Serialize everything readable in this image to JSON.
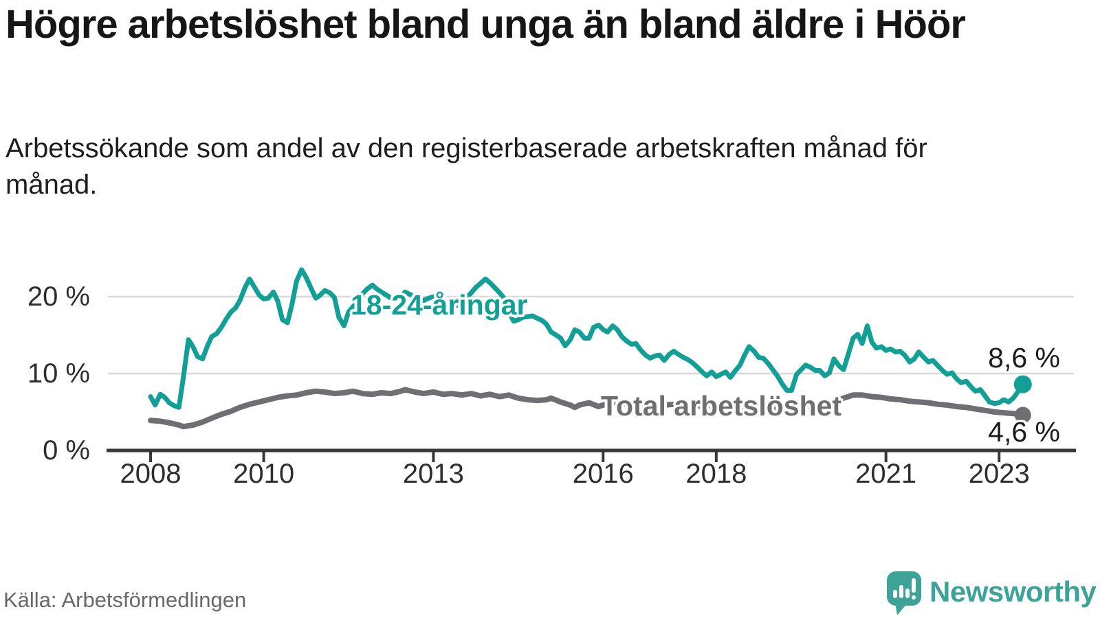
{
  "header": {
    "title": "Högre arbetslöshet bland unga än bland äldre i Höör",
    "subtitle": "Arbetssökande som andel av den registerbaserade arbetskraften månad för månad."
  },
  "chart_data": {
    "type": "line",
    "unit": "%",
    "grid": true,
    "xlim": [
      2007.222,
      2024.322
    ],
    "ylim": [
      0,
      24.46
    ],
    "x_ticks": [
      2008,
      2010,
      2013,
      2016,
      2018,
      2021,
      2023
    ],
    "x_tick_labels": [
      "2008",
      "2010",
      "2013",
      "2016",
      "2018",
      "2021",
      "2023"
    ],
    "y_ticks": [
      0,
      10,
      20
    ],
    "y_tick_labels": [
      "0 %",
      "10 %",
      "20 %"
    ],
    "colors": {
      "youth": "#12A096",
      "total": "#6E6E73",
      "axis": "#38383c",
      "gridline": "#d9d9db",
      "brand": "#3DA398"
    },
    "series": [
      {
        "name": "18-24-åringar",
        "color": "#12A096",
        "end_label": "8,6 %",
        "end_value": 8.6,
        "points": [
          [
            2008.0,
            7.0
          ],
          [
            2008.08,
            5.9
          ],
          [
            2008.17,
            7.3
          ],
          [
            2008.25,
            6.9
          ],
          [
            2008.33,
            6.2
          ],
          [
            2008.42,
            5.8
          ],
          [
            2008.5,
            5.6
          ],
          [
            2008.58,
            9.5
          ],
          [
            2008.67,
            14.4
          ],
          [
            2008.75,
            13.5
          ],
          [
            2008.83,
            12.2
          ],
          [
            2008.92,
            11.9
          ],
          [
            2009.0,
            13.5
          ],
          [
            2009.08,
            14.8
          ],
          [
            2009.17,
            15.2
          ],
          [
            2009.25,
            16.0
          ],
          [
            2009.33,
            17.0
          ],
          [
            2009.42,
            18.0
          ],
          [
            2009.5,
            18.5
          ],
          [
            2009.58,
            19.5
          ],
          [
            2009.67,
            21.2
          ],
          [
            2009.75,
            22.3
          ],
          [
            2009.83,
            21.3
          ],
          [
            2009.92,
            20.2
          ],
          [
            2010.0,
            19.7
          ],
          [
            2010.08,
            19.8
          ],
          [
            2010.17,
            20.6
          ],
          [
            2010.25,
            19.4
          ],
          [
            2010.33,
            17.0
          ],
          [
            2010.42,
            16.6
          ],
          [
            2010.5,
            19.0
          ],
          [
            2010.58,
            22.0
          ],
          [
            2010.67,
            23.5
          ],
          [
            2010.75,
            22.5
          ],
          [
            2010.83,
            21.2
          ],
          [
            2010.92,
            19.8
          ],
          [
            2011.0,
            20.2
          ],
          [
            2011.08,
            20.8
          ],
          [
            2011.17,
            20.5
          ],
          [
            2011.25,
            19.9
          ],
          [
            2011.33,
            17.3
          ],
          [
            2011.42,
            16.2
          ],
          [
            2011.5,
            18.0
          ],
          [
            2011.58,
            18.7
          ],
          [
            2011.67,
            19.6
          ],
          [
            2011.75,
            20.4
          ],
          [
            2011.83,
            21.0
          ],
          [
            2011.92,
            21.5
          ],
          [
            2012.0,
            21.0
          ],
          [
            2012.08,
            20.6
          ],
          [
            2012.17,
            20.2
          ],
          [
            2012.25,
            19.8
          ],
          [
            2012.33,
            19.6
          ],
          [
            2012.42,
            20.0
          ],
          [
            2012.5,
            20.6
          ],
          [
            2012.58,
            20.3
          ],
          [
            2012.67,
            20.0
          ],
          [
            2012.75,
            19.7
          ],
          [
            2012.83,
            19.5
          ],
          [
            2012.92,
            19.8
          ],
          [
            2013.0,
            20.0
          ],
          [
            2013.08,
            19.7
          ],
          [
            2013.17,
            19.4
          ],
          [
            2013.25,
            19.0
          ],
          [
            2013.33,
            18.6
          ],
          [
            2013.42,
            18.9
          ],
          [
            2013.5,
            19.2
          ],
          [
            2013.58,
            19.8
          ],
          [
            2013.67,
            20.5
          ],
          [
            2013.75,
            21.2
          ],
          [
            2013.83,
            21.7
          ],
          [
            2013.92,
            22.3
          ],
          [
            2014.0,
            21.8
          ],
          [
            2014.08,
            21.2
          ],
          [
            2014.17,
            20.5
          ],
          [
            2014.25,
            19.8
          ],
          [
            2014.33,
            18.0
          ],
          [
            2014.42,
            16.8
          ],
          [
            2014.5,
            17.0
          ],
          [
            2014.58,
            17.3
          ],
          [
            2014.67,
            17.4
          ],
          [
            2014.75,
            17.5
          ],
          [
            2014.83,
            17.2
          ],
          [
            2014.92,
            16.9
          ],
          [
            2015.0,
            16.4
          ],
          [
            2015.08,
            15.4
          ],
          [
            2015.17,
            15.0
          ],
          [
            2015.25,
            14.6
          ],
          [
            2015.33,
            13.6
          ],
          [
            2015.42,
            14.4
          ],
          [
            2015.5,
            15.7
          ],
          [
            2015.58,
            15.4
          ],
          [
            2015.67,
            14.6
          ],
          [
            2015.75,
            14.6
          ],
          [
            2015.83,
            16.0
          ],
          [
            2015.92,
            16.3
          ],
          [
            2016.0,
            15.7
          ],
          [
            2016.08,
            15.4
          ],
          [
            2016.17,
            16.2
          ],
          [
            2016.25,
            15.7
          ],
          [
            2016.33,
            14.8
          ],
          [
            2016.42,
            14.2
          ],
          [
            2016.5,
            13.8
          ],
          [
            2016.58,
            13.9
          ],
          [
            2016.67,
            13.0
          ],
          [
            2016.75,
            12.4
          ],
          [
            2016.83,
            12.0
          ],
          [
            2016.92,
            12.3
          ],
          [
            2017.0,
            12.4
          ],
          [
            2017.08,
            11.7
          ],
          [
            2017.17,
            12.5
          ],
          [
            2017.25,
            12.9
          ],
          [
            2017.33,
            12.5
          ],
          [
            2017.42,
            12.1
          ],
          [
            2017.5,
            11.8
          ],
          [
            2017.58,
            11.4
          ],
          [
            2017.67,
            10.8
          ],
          [
            2017.75,
            10.2
          ],
          [
            2017.83,
            9.7
          ],
          [
            2017.92,
            10.2
          ],
          [
            2018.0,
            9.6
          ],
          [
            2018.08,
            9.9
          ],
          [
            2018.17,
            10.2
          ],
          [
            2018.25,
            9.5
          ],
          [
            2018.33,
            10.3
          ],
          [
            2018.42,
            11.1
          ],
          [
            2018.5,
            12.4
          ],
          [
            2018.58,
            13.5
          ],
          [
            2018.67,
            12.9
          ],
          [
            2018.75,
            12.1
          ],
          [
            2018.83,
            12.0
          ],
          [
            2018.92,
            11.3
          ],
          [
            2019.0,
            10.5
          ],
          [
            2019.08,
            9.7
          ],
          [
            2019.17,
            8.6
          ],
          [
            2019.25,
            7.8
          ],
          [
            2019.33,
            7.8
          ],
          [
            2019.42,
            9.9
          ],
          [
            2019.5,
            10.5
          ],
          [
            2019.58,
            11.1
          ],
          [
            2019.67,
            10.8
          ],
          [
            2019.75,
            10.4
          ],
          [
            2019.83,
            10.4
          ],
          [
            2019.92,
            9.7
          ],
          [
            2020.0,
            10.1
          ],
          [
            2020.08,
            11.9
          ],
          [
            2020.17,
            11.0
          ],
          [
            2020.25,
            10.5
          ],
          [
            2020.33,
            12.4
          ],
          [
            2020.42,
            14.6
          ],
          [
            2020.5,
            15.1
          ],
          [
            2020.58,
            13.9
          ],
          [
            2020.67,
            16.2
          ],
          [
            2020.75,
            14.1
          ],
          [
            2020.83,
            13.3
          ],
          [
            2020.92,
            13.5
          ],
          [
            2021.0,
            13.0
          ],
          [
            2021.08,
            13.2
          ],
          [
            2021.17,
            12.8
          ],
          [
            2021.25,
            12.9
          ],
          [
            2021.33,
            12.4
          ],
          [
            2021.42,
            11.5
          ],
          [
            2021.5,
            11.9
          ],
          [
            2021.58,
            12.8
          ],
          [
            2021.67,
            12.1
          ],
          [
            2021.75,
            11.5
          ],
          [
            2021.83,
            11.7
          ],
          [
            2021.92,
            11.0
          ],
          [
            2022.0,
            10.4
          ],
          [
            2022.08,
            9.9
          ],
          [
            2022.17,
            10.1
          ],
          [
            2022.25,
            9.3
          ],
          [
            2022.33,
            8.8
          ],
          [
            2022.42,
            9.0
          ],
          [
            2022.5,
            8.3
          ],
          [
            2022.58,
            7.7
          ],
          [
            2022.67,
            7.9
          ],
          [
            2022.75,
            7.1
          ],
          [
            2022.83,
            6.3
          ],
          [
            2022.92,
            6.1
          ],
          [
            2023.0,
            6.2
          ],
          [
            2023.08,
            6.6
          ],
          [
            2023.17,
            6.3
          ],
          [
            2023.25,
            6.8
          ],
          [
            2023.33,
            7.6
          ],
          [
            2023.42,
            8.6
          ]
        ]
      },
      {
        "name": "Total arbetslöshet",
        "color": "#6E6E73",
        "end_label": "4,6 %",
        "end_value": 4.6,
        "points": [
          [
            2008.0,
            3.9
          ],
          [
            2008.17,
            3.8
          ],
          [
            2008.33,
            3.6
          ],
          [
            2008.5,
            3.3
          ],
          [
            2008.58,
            3.1
          ],
          [
            2008.75,
            3.3
          ],
          [
            2008.92,
            3.7
          ],
          [
            2009.08,
            4.2
          ],
          [
            2009.25,
            4.7
          ],
          [
            2009.42,
            5.1
          ],
          [
            2009.58,
            5.6
          ],
          [
            2009.75,
            6.0
          ],
          [
            2009.92,
            6.3
          ],
          [
            2010.08,
            6.6
          ],
          [
            2010.25,
            6.9
          ],
          [
            2010.42,
            7.1
          ],
          [
            2010.58,
            7.2
          ],
          [
            2010.75,
            7.5
          ],
          [
            2010.92,
            7.7
          ],
          [
            2011.08,
            7.6
          ],
          [
            2011.25,
            7.4
          ],
          [
            2011.42,
            7.5
          ],
          [
            2011.58,
            7.7
          ],
          [
            2011.75,
            7.4
          ],
          [
            2011.92,
            7.3
          ],
          [
            2012.08,
            7.5
          ],
          [
            2012.25,
            7.4
          ],
          [
            2012.42,
            7.7
          ],
          [
            2012.5,
            7.9
          ],
          [
            2012.67,
            7.6
          ],
          [
            2012.83,
            7.4
          ],
          [
            2013.0,
            7.6
          ],
          [
            2013.17,
            7.3
          ],
          [
            2013.33,
            7.4
          ],
          [
            2013.5,
            7.2
          ],
          [
            2013.67,
            7.4
          ],
          [
            2013.83,
            7.1
          ],
          [
            2014.0,
            7.3
          ],
          [
            2014.17,
            7.0
          ],
          [
            2014.33,
            7.2
          ],
          [
            2014.5,
            6.8
          ],
          [
            2014.67,
            6.6
          ],
          [
            2014.83,
            6.5
          ],
          [
            2015.0,
            6.6
          ],
          [
            2015.08,
            6.8
          ],
          [
            2015.25,
            6.3
          ],
          [
            2015.42,
            5.9
          ],
          [
            2015.5,
            5.6
          ],
          [
            2015.58,
            5.9
          ],
          [
            2015.75,
            6.2
          ],
          [
            2015.92,
            5.7
          ],
          [
            2016.08,
            6.1
          ],
          [
            2016.25,
            6.2
          ],
          [
            2016.42,
            6.0
          ],
          [
            2016.58,
            6.1
          ],
          [
            2016.75,
            5.9
          ],
          [
            2016.92,
            6.0
          ],
          [
            2017.08,
            5.9
          ],
          [
            2017.25,
            6.0
          ],
          [
            2017.42,
            5.8
          ],
          [
            2017.58,
            5.9
          ],
          [
            2017.75,
            5.7
          ],
          [
            2017.92,
            5.8
          ],
          [
            2018.08,
            5.6
          ],
          [
            2018.25,
            5.7
          ],
          [
            2018.42,
            5.5
          ],
          [
            2018.58,
            5.6
          ],
          [
            2018.75,
            5.4
          ],
          [
            2018.92,
            5.5
          ],
          [
            2019.08,
            5.3
          ],
          [
            2019.25,
            5.4
          ],
          [
            2019.42,
            5.3
          ],
          [
            2019.58,
            5.5
          ],
          [
            2019.75,
            5.6
          ],
          [
            2019.92,
            5.8
          ],
          [
            2020.08,
            6.2
          ],
          [
            2020.25,
            6.8
          ],
          [
            2020.42,
            7.2
          ],
          [
            2020.58,
            7.2
          ],
          [
            2020.75,
            7.0
          ],
          [
            2020.92,
            6.9
          ],
          [
            2021.08,
            6.7
          ],
          [
            2021.25,
            6.6
          ],
          [
            2021.42,
            6.4
          ],
          [
            2021.58,
            6.3
          ],
          [
            2021.75,
            6.2
          ],
          [
            2021.92,
            6.0
          ],
          [
            2022.08,
            5.9
          ],
          [
            2022.25,
            5.7
          ],
          [
            2022.42,
            5.6
          ],
          [
            2022.58,
            5.4
          ],
          [
            2022.75,
            5.2
          ],
          [
            2022.92,
            5.0
          ],
          [
            2023.08,
            4.9
          ],
          [
            2023.25,
            4.8
          ],
          [
            2023.42,
            4.6
          ]
        ]
      }
    ]
  },
  "footer": {
    "source": "Källa: Arbetsförmedlingen",
    "brand": "Newsworthy"
  }
}
